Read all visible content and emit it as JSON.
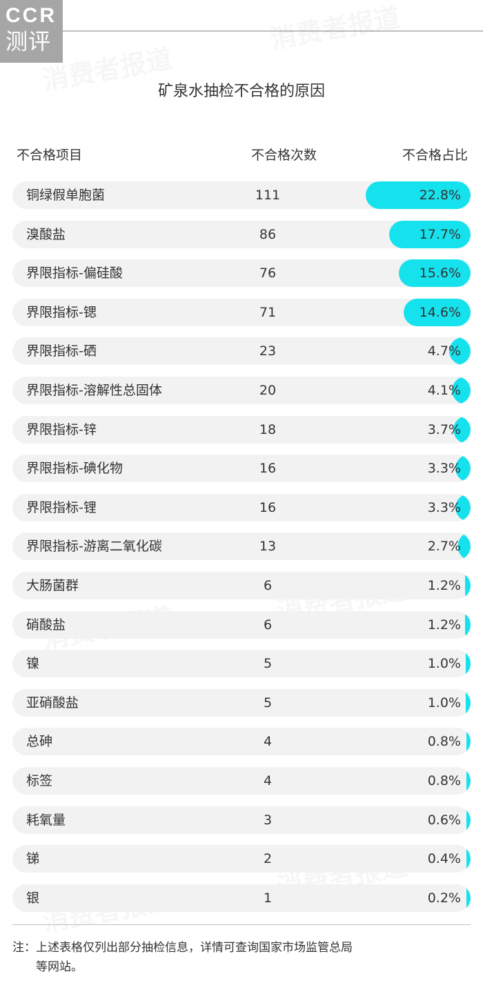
{
  "logo": {
    "top": "CCR",
    "bottom": "测评"
  },
  "watermark_text": "消费者报道",
  "colors": {
    "bar": "#16e2ee",
    "row_bg": "#f2f2f2",
    "text": "#333333"
  },
  "chart_data": {
    "type": "bar",
    "orientation": "horizontal",
    "title": "矿泉水抽检不合格的原因",
    "headers": {
      "item": "不合格项目",
      "count": "不合格次数",
      "pct": "不合格占比"
    },
    "rows": [
      {
        "item": "铜绿假单胞菌",
        "count": "111",
        "pct": "22.8%",
        "value": 22.8
      },
      {
        "item": "溴酸盐",
        "count": "86",
        "pct": "17.7%",
        "value": 17.7
      },
      {
        "item": "界限指标-偏硅酸",
        "count": "76",
        "pct": "15.6%",
        "value": 15.6
      },
      {
        "item": "界限指标-锶",
        "count": "71",
        "pct": "14.6%",
        "value": 14.6
      },
      {
        "item": "界限指标-硒",
        "count": "23",
        "pct": "4.7%",
        "value": 4.7
      },
      {
        "item": "界限指标-溶解性总固体",
        "count": "20",
        "pct": "4.1%",
        "value": 4.1
      },
      {
        "item": "界限指标-锌",
        "count": "18",
        "pct": "3.7%",
        "value": 3.7
      },
      {
        "item": "界限指标-碘化物",
        "count": "16",
        "pct": "3.3%",
        "value": 3.3
      },
      {
        "item": "界限指标-锂",
        "count": "16",
        "pct": "3.3%",
        "value": 3.3
      },
      {
        "item": "界限指标-游离二氧化碳",
        "count": "13",
        "pct": "2.7%",
        "value": 2.7
      },
      {
        "item": "大肠菌群",
        "count": "6",
        "pct": "1.2%",
        "value": 1.2
      },
      {
        "item": "硝酸盐",
        "count": "6",
        "pct": "1.2%",
        "value": 1.2
      },
      {
        "item": "镍",
        "count": "5",
        "pct": "1.0%",
        "value": 1.0
      },
      {
        "item": "亚硝酸盐",
        "count": "5",
        "pct": "1.0%",
        "value": 1.0
      },
      {
        "item": "总砷",
        "count": "4",
        "pct": "0.8%",
        "value": 0.8
      },
      {
        "item": "标签",
        "count": "4",
        "pct": "0.8%",
        "value": 0.8
      },
      {
        "item": "耗氧量",
        "count": "3",
        "pct": "0.6%",
        "value": 0.6
      },
      {
        "item": "锑",
        "count": "2",
        "pct": "0.4%",
        "value": 0.4
      },
      {
        "item": "银",
        "count": "1",
        "pct": "0.2%",
        "value": 0.2
      }
    ]
  },
  "note": {
    "line1": "注：上述表格仅列出部分抽检信息，详情可查询国家市场监管总局",
    "line2": "等网站。"
  }
}
